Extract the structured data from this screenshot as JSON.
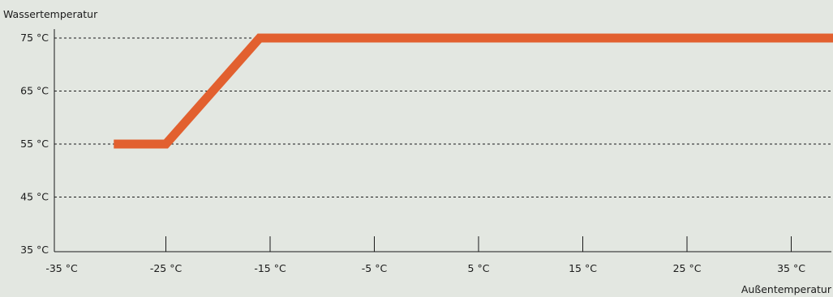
{
  "chart_data": {
    "type": "line",
    "title": "",
    "ylabel": "Wassertemperatur",
    "xlabel": "Außentemperatur",
    "x_ticks": [
      -35,
      -25,
      -15,
      -5,
      5,
      15,
      25,
      35
    ],
    "x_tick_labels": [
      "-35 °C",
      "-25 °C",
      "-15 °C",
      "-5 °C",
      "5 °C",
      "15 °C",
      "25 °C",
      "35 °C"
    ],
    "y_ticks": [
      35,
      45,
      55,
      65,
      75
    ],
    "y_tick_labels": [
      "35 °C",
      "45 °C",
      "55 °C",
      "65 °C",
      "75 °C"
    ],
    "xlim": [
      -35,
      40
    ],
    "ylim": [
      35,
      76
    ],
    "grid": "horizontal dashed",
    "series": [
      {
        "color": "#e2602f",
        "x": [
          -30,
          -25,
          -16,
          40
        ],
        "y": [
          55,
          55,
          75,
          75
        ]
      }
    ]
  }
}
